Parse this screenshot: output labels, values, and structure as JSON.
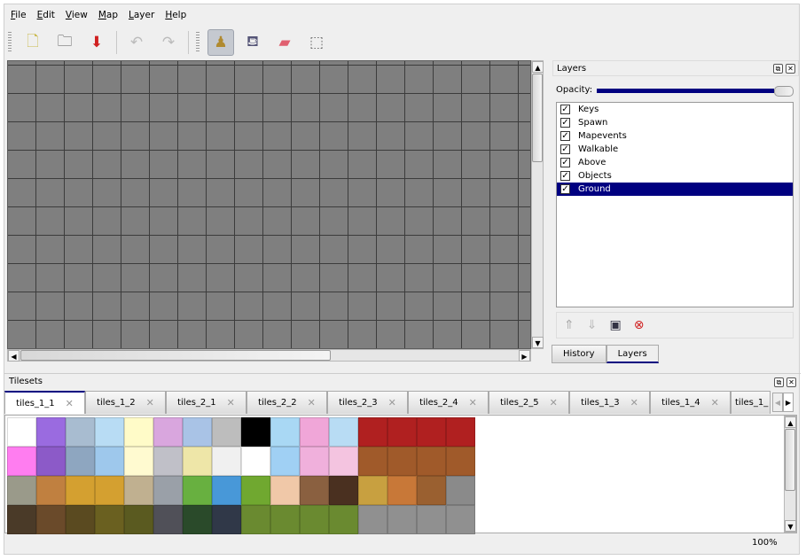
{
  "menu": [
    "File",
    "Edit",
    "View",
    "Map",
    "Layer",
    "Help"
  ],
  "toolbar": [
    {
      "name": "new-map",
      "icon": "new-document-icon",
      "glyph": "🗋"
    },
    {
      "name": "open",
      "icon": "folder-open-icon",
      "glyph": "🗀"
    },
    {
      "name": "save",
      "icon": "save-icon",
      "glyph": "⬇"
    },
    {
      "name": "undo",
      "icon": "undo-icon",
      "glyph": "↶"
    },
    {
      "name": "redo",
      "icon": "redo-icon",
      "glyph": "↷"
    },
    {
      "name": "stamp-brush",
      "icon": "stamp-icon",
      "glyph": "♟",
      "active": true
    },
    {
      "name": "bucket-fill",
      "icon": "bucket-fill-icon",
      "glyph": "⛾"
    },
    {
      "name": "eraser",
      "icon": "eraser-icon",
      "glyph": "▰"
    },
    {
      "name": "rect-select",
      "icon": "rectangle-select-icon",
      "glyph": "⬚"
    }
  ],
  "layers_panel": {
    "title": "Layers",
    "opacity_label": "Opacity:",
    "opacity": 1.0,
    "layers": [
      {
        "name": "Keys",
        "visible": true
      },
      {
        "name": "Spawn",
        "visible": true
      },
      {
        "name": "Mapevents",
        "visible": true
      },
      {
        "name": "Walkable",
        "visible": true
      },
      {
        "name": "Above",
        "visible": true
      },
      {
        "name": "Objects",
        "visible": true
      },
      {
        "name": "Ground",
        "visible": true,
        "selected": true
      }
    ],
    "tabs": [
      "History",
      "Layers"
    ],
    "active_tab": "Layers"
  },
  "tilesets_panel": {
    "title": "Tilesets",
    "tabs": [
      "tiles_1_1",
      "tiles_1_2",
      "tiles_2_1",
      "tiles_2_2",
      "tiles_2_3",
      "tiles_2_4",
      "tiles_2_5",
      "tiles_1_3",
      "tiles_1_4",
      "tiles_1_"
    ],
    "active_tab": "tiles_1_1"
  },
  "tile_colors": [
    "#ffffff",
    "#9a6be0",
    "#a8bcd0",
    "#b8dcf4",
    "#fffbc8",
    "#d9a6de",
    "#a9c3e6",
    "#bdbdbd",
    "#000000",
    "#a9d8f4",
    "#f0a6d8",
    "#b8dcf4",
    "#b02020",
    "#b02020",
    "#b02020",
    "#b02020",
    "#ff7df0",
    "#8c5ac8",
    "#8ea6c0",
    "#9ec8ec",
    "#fffad0",
    "#c0c0c8",
    "#eee6a8",
    "#f0f0f0",
    "#ffffff",
    "#a0d0f4",
    "#f0b0dc",
    "#f4c4e0",
    "#a05a2a",
    "#a05a2a",
    "#a05a2a",
    "#a05a2a",
    "#9a9a8a",
    "#c08040",
    "#d4a030",
    "#d4a030",
    "#c0b090",
    "#9aa0a8",
    "#68b040",
    "#4898d8",
    "#70a830",
    "#f0c8a8",
    "#8a6040",
    "#4a3020",
    "#c8a040",
    "#c87838",
    "#9a6030",
    "#8a8a8a",
    "#4a3a28",
    "#6a4a2a",
    "#5a4a20",
    "#6a6020",
    "#5a5a20",
    "#505058",
    "#2a4a2a",
    "#303848",
    "#6a8a30",
    "#6a8a30",
    "#6a8a30",
    "#6a8a30",
    "#909090",
    "#909090",
    "#909090",
    "#909090"
  ],
  "status": {
    "zoom": "100%"
  }
}
